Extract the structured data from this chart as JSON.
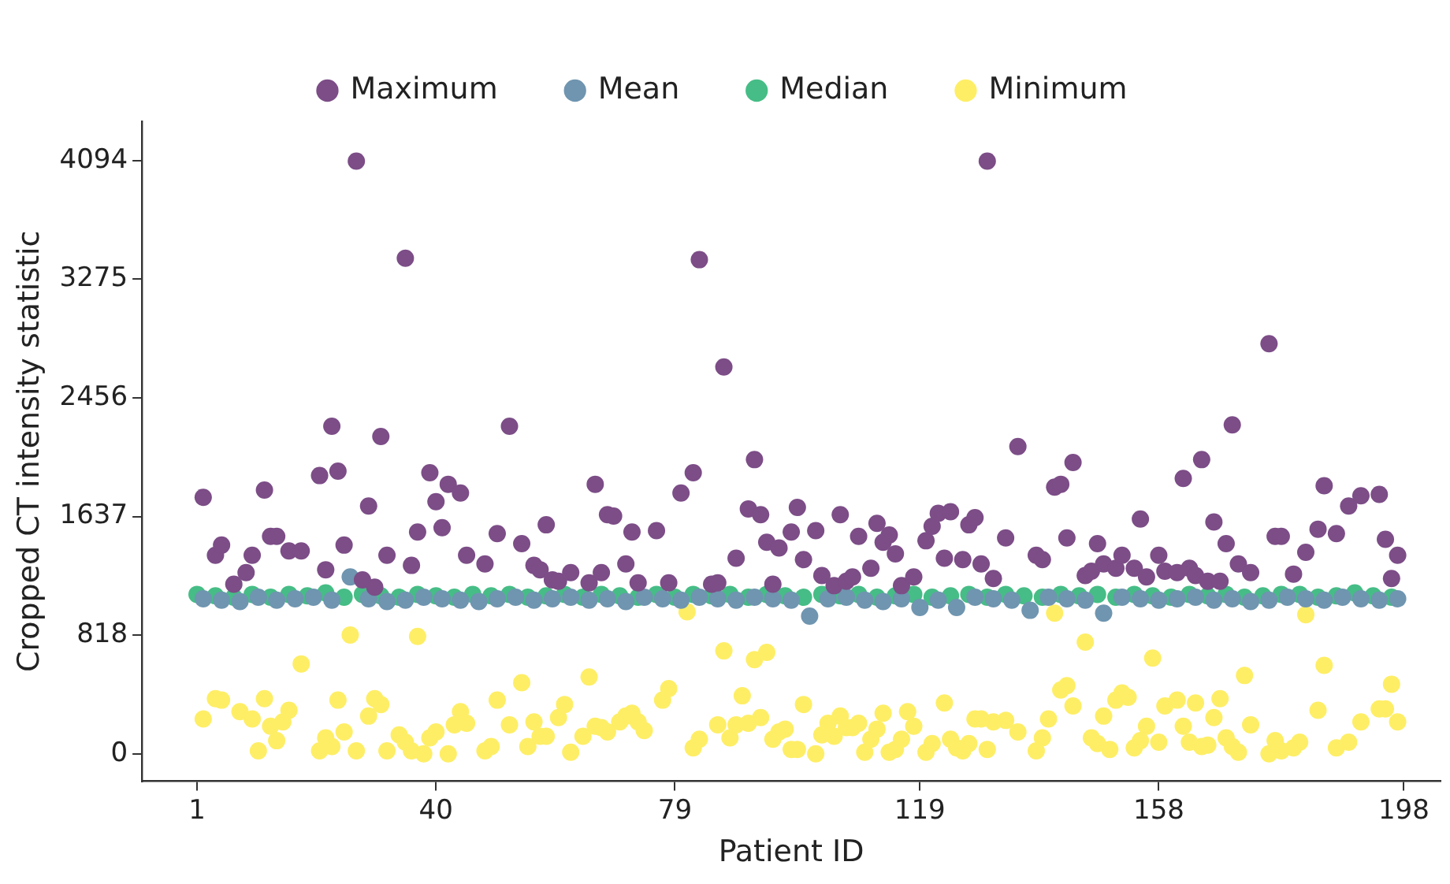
{
  "chart_data": {
    "type": "scatter",
    "xlabel": "Patient ID",
    "ylabel": "Cropped CT intensity statistic",
    "xlim": [
      -8,
      204
    ],
    "ylim": [
      -190,
      4365
    ],
    "xticks": [
      1,
      40,
      79,
      119,
      158,
      198
    ],
    "yticks": [
      0,
      818,
      1637,
      2456,
      3275,
      4094
    ],
    "grid": false,
    "legend": "top",
    "marker": "circle",
    "series": [
      {
        "name": "Maximum",
        "color": "#7c4d87",
        "x": [
          2,
          4,
          5,
          7,
          9,
          10,
          12,
          13,
          14,
          16,
          18,
          21,
          22,
          23,
          24,
          25,
          27,
          28,
          29,
          30,
          31,
          32,
          35,
          36,
          37,
          39,
          40,
          41,
          42,
          44,
          45,
          48,
          50,
          52,
          54,
          56,
          57,
          58,
          59,
          60,
          62,
          65,
          66,
          67,
          68,
          69,
          71,
          72,
          73,
          76,
          78,
          80,
          82,
          83,
          85,
          86,
          87,
          89,
          91,
          92,
          93,
          94,
          95,
          96,
          98,
          99,
          100,
          102,
          103,
          105,
          106,
          107,
          108,
          109,
          111,
          112,
          113,
          114,
          115,
          116,
          118,
          120,
          121,
          122,
          123,
          124,
          126,
          127,
          128,
          129,
          130,
          131,
          133,
          135,
          138,
          139,
          141,
          142,
          143,
          144,
          146,
          147,
          148,
          149,
          151,
          152,
          154,
          155,
          156,
          158,
          159,
          161,
          162,
          163,
          164,
          165,
          166,
          167,
          168,
          169,
          170,
          171,
          173,
          176,
          177,
          178,
          180,
          182,
          184,
          185,
          187,
          189,
          191,
          194,
          195,
          196,
          197
        ],
        "values": [
          1770,
          1370,
          1440,
          1170,
          1250,
          1370,
          1820,
          1500,
          1500,
          1400,
          1400,
          1920,
          1270,
          2260,
          1950,
          1440,
          4090,
          1200,
          1710,
          1150,
          2190,
          1370,
          3420,
          1300,
          1530,
          1940,
          1740,
          1560,
          1860,
          1800,
          1370,
          1310,
          1520,
          2260,
          1450,
          1300,
          1270,
          1580,
          1200,
          1190,
          1250,
          1180,
          1860,
          1250,
          1650,
          1640,
          1310,
          1530,
          1180,
          1540,
          1180,
          1800,
          1940,
          3410,
          1170,
          1180,
          2670,
          1350,
          1690,
          2030,
          1650,
          1460,
          1170,
          1420,
          1530,
          1700,
          1340,
          1540,
          1230,
          1160,
          1650,
          1190,
          1220,
          1500,
          1280,
          1590,
          1460,
          1510,
          1380,
          1160,
          1220,
          1470,
          1570,
          1660,
          1350,
          1670,
          1340,
          1580,
          1630,
          1310,
          4090,
          1210,
          1490,
          2120,
          1370,
          1340,
          1840,
          1860,
          1490,
          2010,
          1230,
          1260,
          1450,
          1310,
          1280,
          1370,
          1280,
          1620,
          1220,
          1370,
          1260,
          1250,
          1900,
          1280,
          1230,
          2030,
          1190,
          1600,
          1190,
          1450,
          2270,
          1310,
          1250,
          2830,
          1500,
          1500,
          1240,
          1390,
          1550,
          1850,
          1520,
          1710,
          1780,
          1790,
          1480,
          1210,
          1370
        ]
      },
      {
        "name": "Mean",
        "color": "#6f95b0",
        "x": [
          2,
          5,
          8,
          11,
          14,
          17,
          20,
          23,
          26,
          29,
          32,
          35,
          38,
          41,
          44,
          47,
          50,
          53,
          56,
          59,
          62,
          65,
          68,
          71,
          74,
          77,
          80,
          83,
          86,
          89,
          92,
          95,
          98,
          101,
          104,
          107,
          110,
          113,
          116,
          119,
          122,
          125,
          128,
          131,
          134,
          137,
          140,
          143,
          146,
          149,
          152,
          155,
          158,
          161,
          164,
          167,
          170,
          173,
          176,
          179,
          182,
          185,
          188,
          191,
          194,
          197
        ],
        "values": [
          1070,
          1060,
          1050,
          1080,
          1060,
          1070,
          1080,
          1060,
          1220,
          1070,
          1050,
          1060,
          1080,
          1070,
          1060,
          1050,
          1070,
          1080,
          1060,
          1070,
          1080,
          1060,
          1070,
          1050,
          1080,
          1070,
          1060,
          1080,
          1070,
          1060,
          1080,
          1070,
          1060,
          950,
          1070,
          1080,
          1060,
          1050,
          1070,
          1010,
          1060,
          1010,
          1080,
          1070,
          1060,
          990,
          1080,
          1070,
          1060,
          970,
          1080,
          1070,
          1060,
          1070,
          1080,
          1060,
          1070,
          1050,
          1060,
          1080,
          1070,
          1060,
          1080,
          1070,
          1060,
          1070
        ]
      },
      {
        "name": "Median",
        "color": "#46bd86",
        "x": [
          1,
          4,
          7,
          10,
          13,
          16,
          19,
          22,
          25,
          28,
          31,
          34,
          37,
          40,
          43,
          46,
          49,
          52,
          55,
          58,
          61,
          64,
          67,
          70,
          73,
          76,
          79,
          82,
          85,
          88,
          91,
          94,
          97,
          100,
          103,
          106,
          109,
          112,
          115,
          118,
          121,
          124,
          127,
          130,
          133,
          136,
          139,
          142,
          145,
          148,
          151,
          154,
          157,
          160,
          163,
          166,
          169,
          172,
          175,
          178,
          181,
          184,
          187,
          190,
          193,
          196
        ],
        "values": [
          1100,
          1090,
          1080,
          1100,
          1080,
          1100,
          1090,
          1110,
          1080,
          1100,
          1090,
          1080,
          1100,
          1090,
          1080,
          1100,
          1090,
          1100,
          1080,
          1090,
          1100,
          1080,
          1100,
          1090,
          1080,
          1100,
          1080,
          1100,
          1090,
          1100,
          1080,
          1100,
          1090,
          1080,
          1100,
          1090,
          1100,
          1080,
          1090,
          1100,
          1080,
          1090,
          1100,
          1080,
          1100,
          1090,
          1080,
          1100,
          1090,
          1100,
          1080,
          1100,
          1090,
          1080,
          1100,
          1090,
          1100,
          1080,
          1090,
          1100,
          1100,
          1080,
          1090,
          1110,
          1090,
          1080
        ]
      },
      {
        "name": "Minimum",
        "color": "#feee66",
        "x": [
          2,
          4,
          5,
          8,
          10,
          11,
          12,
          13,
          14,
          15,
          16,
          18,
          21,
          22,
          23,
          24,
          25,
          26,
          27,
          29,
          30,
          31,
          32,
          34,
          35,
          36,
          37,
          38,
          39,
          40,
          42,
          43,
          44,
          45,
          48,
          49,
          50,
          52,
          54,
          55,
          56,
          57,
          58,
          60,
          61,
          62,
          64,
          65,
          66,
          67,
          68,
          70,
          71,
          72,
          73,
          74,
          77,
          78,
          81,
          82,
          83,
          86,
          87,
          88,
          89,
          90,
          91,
          92,
          93,
          94,
          95,
          96,
          97,
          98,
          99,
          100,
          102,
          103,
          104,
          105,
          106,
          107,
          108,
          109,
          110,
          111,
          112,
          113,
          114,
          115,
          116,
          117,
          118,
          120,
          121,
          123,
          124,
          125,
          126,
          127,
          128,
          129,
          130,
          131,
          133,
          135,
          138,
          139,
          140,
          141,
          142,
          143,
          144,
          146,
          147,
          148,
          149,
          150,
          151,
          152,
          153,
          154,
          155,
          156,
          157,
          158,
          159,
          161,
          162,
          163,
          164,
          165,
          166,
          167,
          168,
          169,
          170,
          171,
          172,
          173,
          176,
          177,
          178,
          180,
          181,
          182,
          184,
          185,
          187,
          189,
          191,
          194,
          195,
          196,
          197
        ],
        "values": [
          240,
          380,
          370,
          290,
          240,
          20,
          380,
          190,
          90,
          220,
          300,
          620,
          20,
          110,
          50,
          370,
          150,
          820,
          20,
          260,
          380,
          340,
          20,
          130,
          80,
          20,
          810,
          0,
          110,
          150,
          0,
          200,
          290,
          210,
          20,
          50,
          370,
          200,
          490,
          50,
          220,
          120,
          120,
          250,
          340,
          10,
          120,
          530,
          190,
          180,
          150,
          220,
          260,
          280,
          220,
          160,
          370,
          450,
          980,
          40,
          100,
          200,
          710,
          110,
          200,
          400,
          210,
          650,
          250,
          700,
          100,
          150,
          170,
          30,
          30,
          340,
          0,
          130,
          210,
          120,
          260,
          180,
          180,
          210,
          10,
          100,
          170,
          280,
          10,
          30,
          100,
          290,
          190,
          10,
          70,
          350,
          100,
          40,
          20,
          70,
          240,
          240,
          30,
          220,
          230,
          150,
          20,
          110,
          240,
          970,
          440,
          470,
          330,
          770,
          110,
          70,
          260,
          30,
          370,
          420,
          390,
          40,
          90,
          190,
          660,
          80,
          330,
          370,
          190,
          80,
          350,
          50,
          60,
          250,
          380,
          110,
          50,
          10,
          540,
          200,
          0,
          90,
          20,
          40,
          80,
          960,
          300,
          610,
          40,
          80,
          220,
          310,
          310,
          480,
          220
        ]
      }
    ]
  }
}
